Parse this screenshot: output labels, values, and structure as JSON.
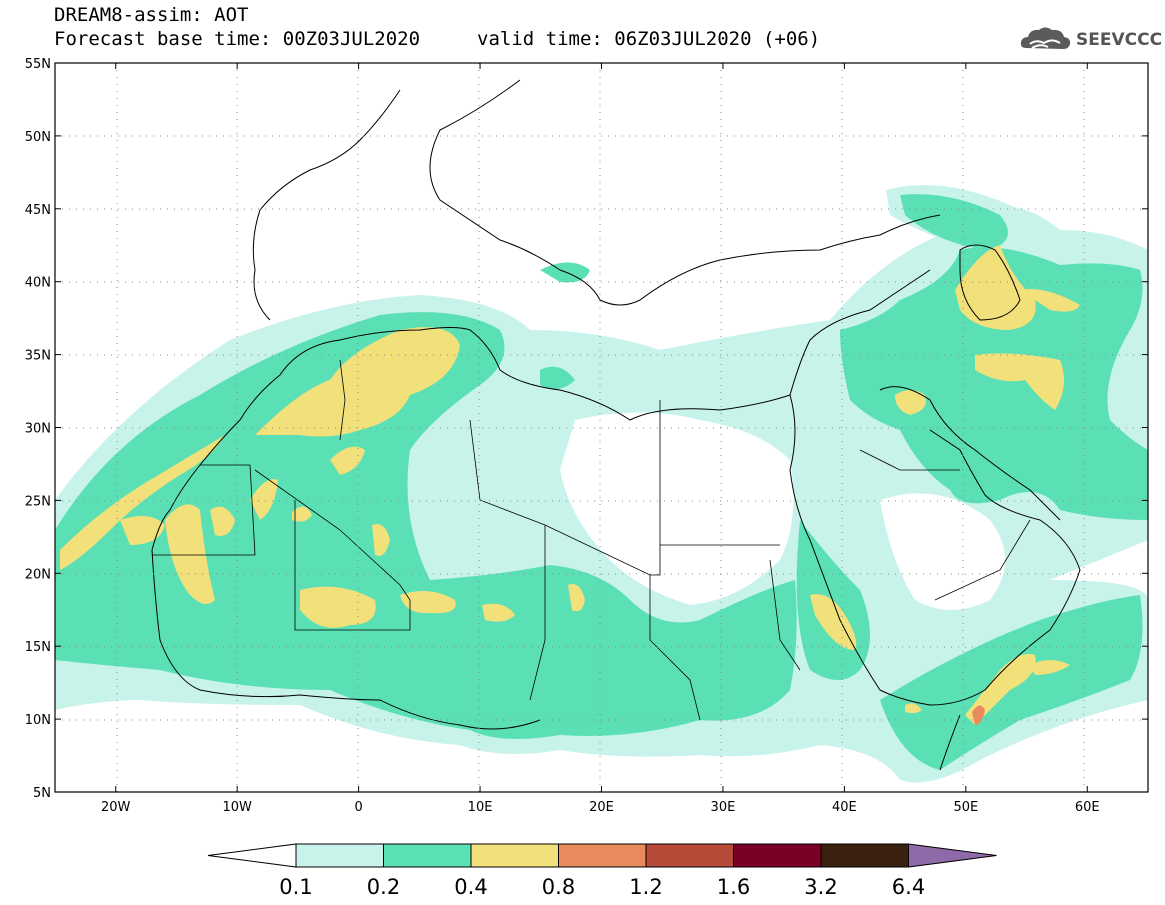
{
  "header": {
    "line1": "DREAM8-assim: AOT",
    "line2": "Forecast base time: 00Z03JUL2020",
    "valid": "valid time: 06Z03JUL2020 (+06)"
  },
  "logo": {
    "text": "SEEVCCC",
    "icon": "cloud-icon"
  },
  "map": {
    "lon_range": [
      -25,
      65
    ],
    "lat_range": [
      5,
      55
    ],
    "lat_ticks": [
      "55N",
      "50N",
      "45N",
      "40N",
      "35N",
      "30N",
      "25N",
      "20N",
      "15N",
      "10N",
      "5N"
    ],
    "lon_ticks": [
      "20W",
      "10W",
      "0",
      "10E",
      "20E",
      "30E",
      "40E",
      "50E",
      "60E"
    ],
    "grid": true
  },
  "legend": {
    "labels": [
      "0.1",
      "0.2",
      "0.4",
      "0.8",
      "1.2",
      "1.6",
      "3.2",
      "6.4"
    ],
    "colors": [
      "#c8f3eb",
      "#5ae0b4",
      "#f2e07a",
      "#e98a5c",
      "#b84a3a",
      "#7a0026",
      "#3a200e",
      "#8e6aa8"
    ],
    "left_arrow_color": "#ffffff",
    "right_arrow_color": "#8e6aa8"
  },
  "colors": {
    "aot_01": "#c8f3eb",
    "aot_02": "#5ae0b4",
    "aot_04": "#f2e07a",
    "aot_08": "#e98a5c",
    "aot_12": "#b84a3a"
  }
}
